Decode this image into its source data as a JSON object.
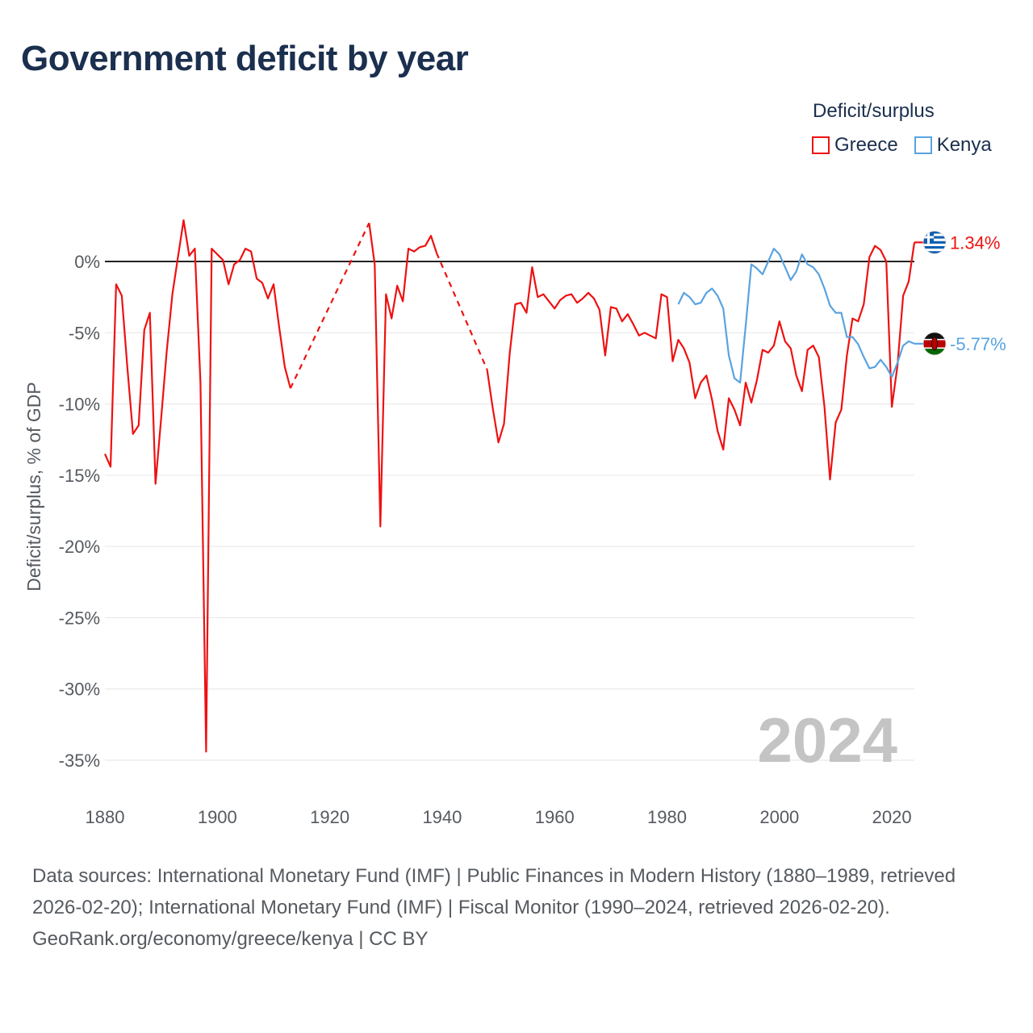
{
  "title": "Government deficit by year",
  "legend": {
    "title": "Deficit/surplus",
    "items": [
      {
        "name": "Greece",
        "color": "#ee1111"
      },
      {
        "name": "Kenya",
        "color": "#5aa3e0"
      }
    ]
  },
  "chart_data": {
    "type": "line",
    "title": "Government deficit by year",
    "xlabel": "",
    "ylabel": "Deficit/surplus, % of GDP",
    "xlim": [
      1880,
      2024
    ],
    "ylim": [
      -38,
      3.5
    ],
    "x_ticks": [
      1880,
      1900,
      1920,
      1940,
      1960,
      1980,
      2000,
      2020
    ],
    "y_ticks": [
      0,
      -5,
      -10,
      -15,
      -20,
      -25,
      -30,
      -35
    ],
    "y_tick_labels": [
      "0%",
      "-5%",
      "-10%",
      "-15%",
      "-20%",
      "-25%",
      "-30%",
      "-35%"
    ],
    "year_watermark": "2024",
    "series": [
      {
        "name": "Greece",
        "color": "#ee1111",
        "end_label": "1.34%",
        "segments": [
          [
            [
              1880,
              -13.5
            ],
            [
              1881,
              -14.4
            ],
            [
              1882,
              -1.6
            ],
            [
              1883,
              -2.4
            ],
            [
              1884,
              -7.5
            ],
            [
              1885,
              -12.1
            ],
            [
              1886,
              -11.5
            ],
            [
              1887,
              -4.8
            ],
            [
              1888,
              -3.6
            ],
            [
              1889,
              -15.6
            ],
            [
              1890,
              -11.0
            ],
            [
              1891,
              -6.3
            ],
            [
              1892,
              -2.3
            ],
            [
              1893,
              0.3
            ],
            [
              1894,
              2.9
            ],
            [
              1895,
              0.4
            ],
            [
              1896,
              0.9
            ],
            [
              1897,
              -8.5
            ],
            [
              1898,
              -34.4
            ],
            [
              1899,
              0.9
            ],
            [
              1900,
              0.5
            ],
            [
              1901,
              0.1
            ],
            [
              1902,
              -1.6
            ],
            [
              1903,
              -0.2
            ],
            [
              1904,
              0.1
            ],
            [
              1905,
              0.9
            ],
            [
              1906,
              0.7
            ],
            [
              1907,
              -1.2
            ],
            [
              1908,
              -1.5
            ],
            [
              1909,
              -2.6
            ],
            [
              1910,
              -1.6
            ],
            [
              1911,
              -4.6
            ],
            [
              1912,
              -7.4
            ],
            [
              1913,
              -8.9
            ]
          ],
          [
            [
              1927,
              2.7
            ],
            [
              1928,
              -0.2
            ],
            [
              1929,
              -18.6
            ],
            [
              1930,
              -2.3
            ],
            [
              1931,
              -4.0
            ],
            [
              1932,
              -1.7
            ],
            [
              1933,
              -2.8
            ],
            [
              1934,
              0.9
            ],
            [
              1935,
              0.7
            ],
            [
              1936,
              1.0
            ],
            [
              1937,
              1.1
            ],
            [
              1938,
              1.8
            ],
            [
              1939,
              0.6
            ]
          ],
          [
            [
              1948,
              -7.6
            ],
            [
              1949,
              -10.3
            ],
            [
              1950,
              -12.7
            ],
            [
              1951,
              -11.4
            ],
            [
              1952,
              -6.5
            ],
            [
              1953,
              -3.0
            ],
            [
              1954,
              -2.9
            ],
            [
              1955,
              -3.6
            ],
            [
              1956,
              -0.4
            ],
            [
              1957,
              -2.5
            ],
            [
              1958,
              -2.3
            ],
            [
              1959,
              -2.8
            ],
            [
              1960,
              -3.3
            ],
            [
              1961,
              -2.7
            ],
            [
              1962,
              -2.4
            ],
            [
              1963,
              -2.3
            ],
            [
              1964,
              -2.9
            ],
            [
              1965,
              -2.6
            ],
            [
              1966,
              -2.2
            ],
            [
              1967,
              -2.6
            ],
            [
              1968,
              -3.4
            ],
            [
              1969,
              -6.6
            ],
            [
              1970,
              -3.2
            ],
            [
              1971,
              -3.3
            ],
            [
              1972,
              -4.2
            ],
            [
              1973,
              -3.7
            ],
            [
              1974,
              -4.4
            ],
            [
              1975,
              -5.2
            ],
            [
              1976,
              -5.0
            ],
            [
              1977,
              -5.2
            ],
            [
              1978,
              -5.4
            ],
            [
              1979,
              -2.3
            ],
            [
              1980,
              -2.5
            ],
            [
              1981,
              -7.0
            ],
            [
              1982,
              -5.5
            ],
            [
              1983,
              -6.1
            ],
            [
              1984,
              -7.1
            ],
            [
              1985,
              -9.6
            ],
            [
              1986,
              -8.5
            ],
            [
              1987,
              -8.0
            ],
            [
              1988,
              -9.7
            ],
            [
              1989,
              -11.9
            ],
            [
              1990,
              -13.2
            ],
            [
              1991,
              -9.6
            ],
            [
              1992,
              -10.4
            ],
            [
              1993,
              -11.5
            ],
            [
              1994,
              -8.5
            ],
            [
              1995,
              -9.9
            ],
            [
              1996,
              -8.3
            ],
            [
              1997,
              -6.2
            ],
            [
              1998,
              -6.4
            ],
            [
              1999,
              -5.9
            ],
            [
              2000,
              -4.2
            ],
            [
              2001,
              -5.6
            ],
            [
              2002,
              -6.1
            ],
            [
              2003,
              -8.0
            ],
            [
              2004,
              -9.1
            ],
            [
              2005,
              -6.2
            ],
            [
              2006,
              -5.9
            ],
            [
              2007,
              -6.7
            ],
            [
              2008,
              -10.2
            ],
            [
              2009,
              -15.3
            ],
            [
              2010,
              -11.3
            ],
            [
              2011,
              -10.4
            ],
            [
              2012,
              -6.6
            ],
            [
              2013,
              -4.0
            ],
            [
              2014,
              -4.2
            ],
            [
              2015,
              -3.0
            ],
            [
              2016,
              0.3
            ],
            [
              2017,
              1.1
            ],
            [
              2018,
              0.8
            ],
            [
              2019,
              0.0
            ],
            [
              2020,
              -10.2
            ],
            [
              2021,
              -7.3
            ],
            [
              2022,
              -2.4
            ],
            [
              2023,
              -1.4
            ],
            [
              2024,
              1.34
            ]
          ]
        ],
        "gaps": [
          [
            [
              1913,
              -8.9
            ],
            [
              1927,
              2.7
            ]
          ],
          [
            [
              1939,
              0.6
            ],
            [
              1948,
              -7.6
            ]
          ]
        ]
      },
      {
        "name": "Kenya",
        "color": "#5aa3e0",
        "end_label": "-5.77%",
        "segments": [
          [
            [
              1982,
              -3.0
            ],
            [
              1983,
              -2.2
            ],
            [
              1984,
              -2.5
            ],
            [
              1985,
              -3.0
            ],
            [
              1986,
              -2.9
            ],
            [
              1987,
              -2.2
            ],
            [
              1988,
              -1.9
            ],
            [
              1989,
              -2.4
            ],
            [
              1990,
              -3.3
            ],
            [
              1991,
              -6.6
            ],
            [
              1992,
              -8.2
            ],
            [
              1993,
              -8.5
            ],
            [
              1994,
              -4.5
            ],
            [
              1995,
              -0.2
            ],
            [
              1996,
              -0.5
            ],
            [
              1997,
              -0.9
            ],
            [
              1998,
              0.0
            ],
            [
              1999,
              0.9
            ],
            [
              2000,
              0.5
            ],
            [
              2001,
              -0.4
            ],
            [
              2002,
              -1.3
            ],
            [
              2003,
              -0.7
            ],
            [
              2004,
              0.5
            ],
            [
              2005,
              -0.2
            ],
            [
              2006,
              -0.4
            ],
            [
              2007,
              -0.9
            ],
            [
              2008,
              -1.9
            ],
            [
              2009,
              -3.1
            ],
            [
              2010,
              -3.6
            ],
            [
              2011,
              -3.6
            ],
            [
              2012,
              -5.3
            ],
            [
              2013,
              -5.3
            ],
            [
              2014,
              -5.8
            ],
            [
              2015,
              -6.7
            ],
            [
              2016,
              -7.5
            ],
            [
              2017,
              -7.4
            ],
            [
              2018,
              -6.9
            ],
            [
              2019,
              -7.4
            ],
            [
              2020,
              -8.1
            ],
            [
              2021,
              -7.1
            ],
            [
              2022,
              -5.9
            ],
            [
              2023,
              -5.6
            ],
            [
              2024,
              -5.77
            ]
          ]
        ],
        "gaps": []
      }
    ]
  },
  "footer": {
    "sources": "Data sources: International Monetary Fund (IMF) | Public Finances in Modern History (1880–1989, retrieved 2026-02-20); International Monetary Fund (IMF) | Fiscal Monitor (1990–2024, retrieved 2026-02-20).",
    "credit": "GeoRank.org/economy/greece/kenya | CC BY"
  }
}
